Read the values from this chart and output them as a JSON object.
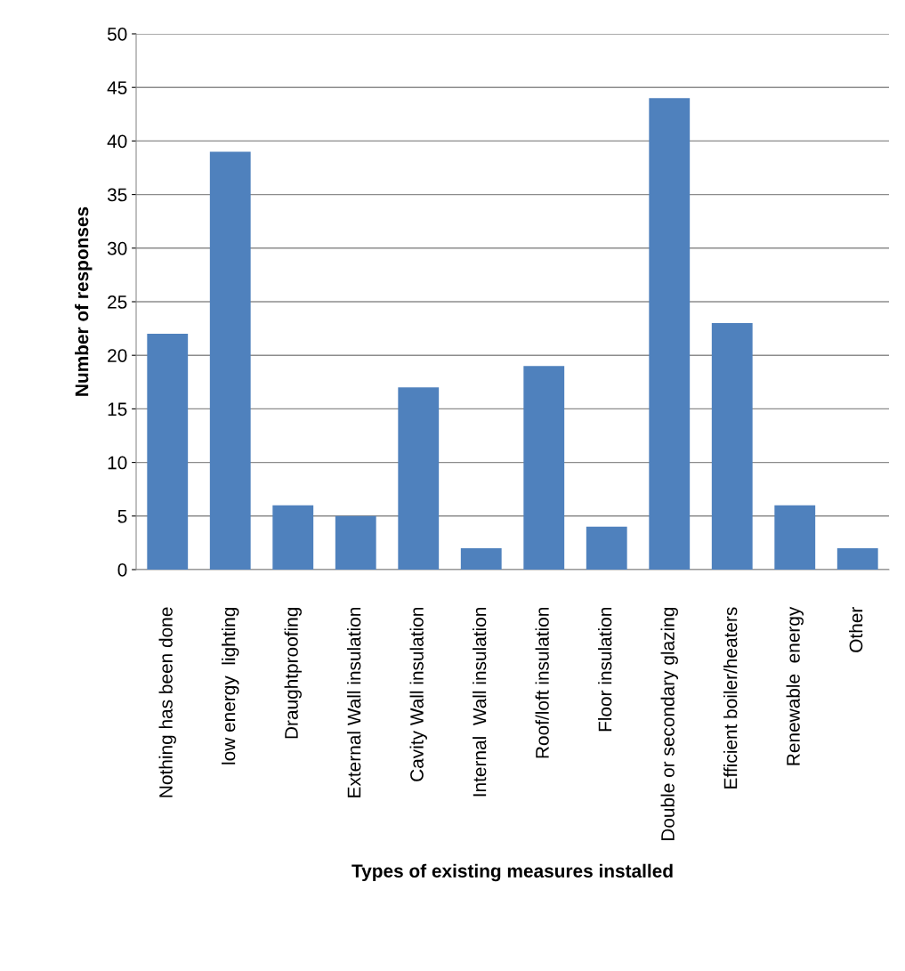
{
  "chart_data": {
    "type": "bar",
    "xlabel": "Types of existing measures installed",
    "ylabel": "Number of responses",
    "categories": [
      "Nothing has been done",
      "low energy  lighting",
      "Draughtproofing",
      "External Wall insulation",
      "Cavity Wall insulation",
      "Internal  Wall insulation",
      "Roof/loft insulation",
      "Floor insulation",
      "Double or secondary glazing",
      "Efficient boiler/heaters",
      "Renewable  energy",
      "Other"
    ],
    "values": [
      22,
      39,
      6,
      5,
      17,
      2,
      19,
      4,
      44,
      23,
      6,
      2
    ],
    "color": "#4f81bd",
    "ylim": [
      0,
      50
    ],
    "yticks": [
      0,
      5,
      10,
      15,
      20,
      25,
      30,
      35,
      40,
      45,
      50
    ],
    "grid": "y",
    "legend": false
  }
}
